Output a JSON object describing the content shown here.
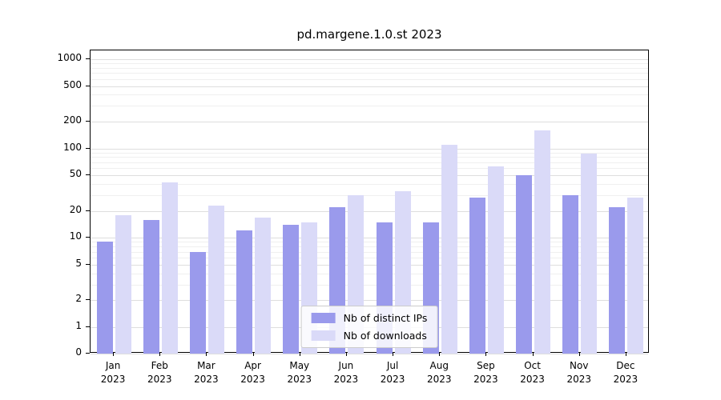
{
  "title": "pd.margene.1.0.st 2023",
  "chart_data": {
    "type": "bar",
    "scale": "symlog",
    "title": "pd.margene.1.0.st 2023",
    "xlabel": "",
    "ylabel": "",
    "ylim": [
      0,
      1000
    ],
    "yticks": [
      0,
      1,
      2,
      5,
      10,
      20,
      50,
      100,
      200,
      500,
      1000
    ],
    "grid": true,
    "legend_position": "lower center inside",
    "categories": [
      {
        "month": "Jan",
        "year": "2023"
      },
      {
        "month": "Feb",
        "year": "2023"
      },
      {
        "month": "Mar",
        "year": "2023"
      },
      {
        "month": "Apr",
        "year": "2023"
      },
      {
        "month": "May",
        "year": "2023"
      },
      {
        "month": "Jun",
        "year": "2023"
      },
      {
        "month": "Jul",
        "year": "2023"
      },
      {
        "month": "Aug",
        "year": "2023"
      },
      {
        "month": "Sep",
        "year": "2023"
      },
      {
        "month": "Oct",
        "year": "2023"
      },
      {
        "month": "Nov",
        "year": "2023"
      },
      {
        "month": "Dec",
        "year": "2023"
      }
    ],
    "series": [
      {
        "name": "Nb of distinct IPs",
        "color": "#9a9aec",
        "values": [
          9,
          16,
          7,
          12,
          14,
          22,
          15,
          15,
          28,
          50,
          30,
          22
        ]
      },
      {
        "name": "Nb of downloads",
        "color": "#dadaf8",
        "values": [
          18,
          42,
          23,
          17,
          15,
          30,
          33,
          110,
          63,
          160,
          88,
          28
        ]
      }
    ]
  }
}
